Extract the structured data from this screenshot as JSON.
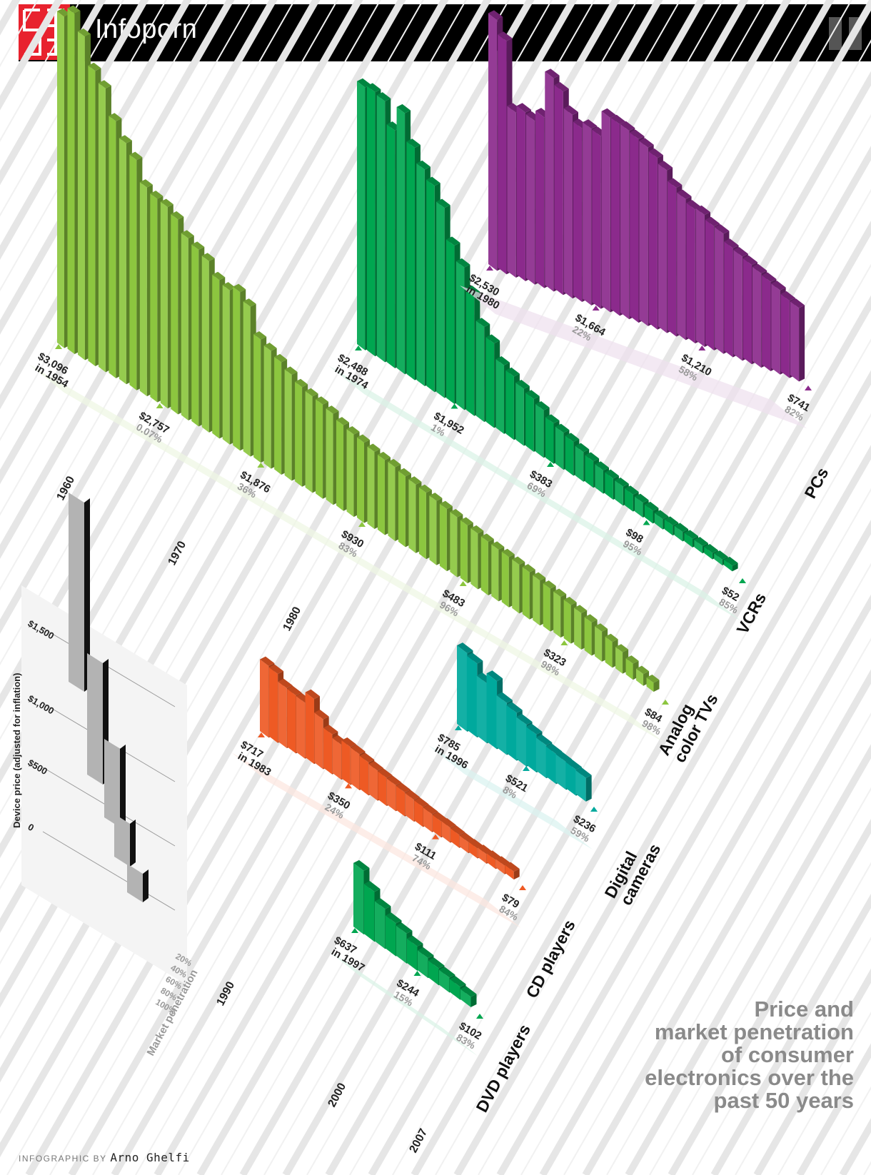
{
  "header": {
    "section_title": "Infoporn"
  },
  "title": {
    "lines": [
      "Price and",
      "market penetration",
      "of consumer",
      "electronics over the",
      "past 50 years"
    ]
  },
  "credit": {
    "prefix": "INFOGRAPHIC BY",
    "name": "Arno Ghelfi"
  },
  "legend": {
    "price_axis_label": "Device price (adjusted for inflation)",
    "price_ticks": [
      "$1,500",
      "$1,000",
      "$500",
      "0"
    ],
    "penetration_axis_label": "Market penetration",
    "penetration_ticks": [
      "20%",
      "40%",
      "60%",
      "80%",
      "100%"
    ]
  },
  "decade_labels": [
    "1960",
    "1970",
    "1980",
    "1990",
    "2000",
    "2007"
  ],
  "colors": {
    "tv": "#8cc63f",
    "vcr": "#00a650",
    "pc": "#8b2a8c",
    "cd": "#ee5a24",
    "camera": "#00a99d",
    "dvd": "#00a650"
  },
  "chart_data": [
    {
      "type": "bar",
      "name": "Analog color TVs",
      "color": "#8cc63f",
      "start_year": 1954,
      "values": [
        3096,
        3180,
        3020,
        2757,
        2650,
        2400,
        2250,
        2150,
        1950,
        1900,
        1880,
        1820,
        1700,
        1650,
        1600,
        1480,
        1440,
        1480,
        1400,
        1150,
        1100,
        1050,
        990,
        930,
        900,
        880,
        850,
        800,
        770,
        750,
        720,
        700,
        690,
        660,
        640,
        620,
        600,
        580,
        560,
        540,
        520,
        500,
        483,
        470,
        455,
        440,
        420,
        400,
        380,
        360,
        340,
        310,
        280,
        240,
        200,
        150,
        110,
        84
      ],
      "annotations": [
        {
          "price": "$3,096",
          "sub": "in 1954",
          "sub_style": "year"
        },
        {
          "price": "$2,757",
          "sub": "0.07%",
          "sub_style": "pct"
        },
        {
          "price": "$1,876",
          "sub": "36%",
          "sub_style": "pct"
        },
        {
          "price": "$930",
          "sub": "83%",
          "sub_style": "pct"
        },
        {
          "price": "$483",
          "sub": "96%",
          "sub_style": "pct"
        },
        {
          "price": "$323",
          "sub": "98%",
          "sub_style": "pct"
        },
        {
          "price": "$84",
          "sub": "98%",
          "sub_style": "pct"
        }
      ]
    },
    {
      "type": "bar",
      "name": "VCRs",
      "color": "#00a650",
      "start_year": 1974,
      "values": [
        2488,
        2500,
        2470,
        2250,
        2470,
        2200,
        2050,
        1952,
        1800,
        1500,
        1350,
        1150,
        900,
        800,
        650,
        600,
        540,
        500,
        450,
        383,
        350,
        320,
        280,
        250,
        220,
        200,
        180,
        160,
        140,
        120,
        98,
        95,
        90,
        80,
        70,
        60,
        55,
        52
      ],
      "annotations": [
        {
          "price": "$2,488",
          "sub": "in 1974",
          "sub_style": "year"
        },
        {
          "price": "$1,952",
          "sub": "1%",
          "sub_style": "pct"
        },
        {
          "price": "$383",
          "sub": "69%",
          "sub_style": "pct"
        },
        {
          "price": "$98",
          "sub": "95%",
          "sub_style": "pct"
        },
        {
          "price": "$52",
          "sub": "85%",
          "sub_style": "pct"
        }
      ]
    },
    {
      "type": "bar",
      "name": "PCs",
      "color": "#8b2a8c",
      "start_year": 1980,
      "values": [
        2530,
        2350,
        1664,
        1700,
        1650,
        1720,
        2150,
        2050,
        1850,
        1750,
        1780,
        1740,
        1960,
        1930,
        1900,
        1850,
        1800,
        1730,
        1640,
        1500,
        1420,
        1350,
        1330,
        1250,
        1210,
        1100,
        1050,
        1000,
        950,
        900,
        850,
        780,
        741
      ],
      "annotations": [
        {
          "price": "$2,530",
          "sub": "in 1980",
          "sub_style": "year"
        },
        {
          "price": "$1,664",
          "sub": "22%",
          "sub_style": "pct"
        },
        {
          "price": "$1,210",
          "sub": "58%",
          "sub_style": "pct"
        },
        {
          "price": "$741",
          "sub": "82%",
          "sub_style": "pct"
        }
      ]
    },
    {
      "type": "bar",
      "name": "CD players",
      "color": "#ee5a24",
      "start_year": 1983,
      "values": [
        717,
        690,
        600,
        580,
        560,
        650,
        500,
        400,
        350,
        380,
        360,
        330,
        300,
        280,
        260,
        240,
        220,
        200,
        180,
        160,
        150,
        130,
        111,
        100,
        95,
        90,
        85,
        79
      ],
      "annotations": [
        {
          "price": "$717",
          "sub": "in 1983",
          "sub_style": "year"
        },
        {
          "price": "$350",
          "sub": "24%",
          "sub_style": "pct"
        },
        {
          "price": "$111",
          "sub": "74%",
          "sub_style": "pct"
        },
        {
          "price": "$79",
          "sub": "84%",
          "sub_style": "pct"
        }
      ]
    },
    {
      "type": "bar",
      "name": "Digital cameras",
      "color": "#00a99d",
      "start_year": 1996,
      "values": [
        785,
        740,
        600,
        680,
        521,
        480,
        420,
        380,
        330,
        300,
        280,
        260,
        236
      ],
      "annotations": [
        {
          "price": "$785",
          "sub": "in 1996",
          "sub_style": "year"
        },
        {
          "price": "$521",
          "sub": "8%",
          "sub_style": "pct"
        },
        {
          "price": "$236",
          "sub": "59%",
          "sub_style": "pct"
        }
      ]
    },
    {
      "type": "bar",
      "name": "DVD players",
      "color": "#00a650",
      "start_year": 1997,
      "values": [
        637,
        500,
        400,
        330,
        300,
        244,
        200,
        170,
        150,
        130,
        102
      ],
      "annotations": [
        {
          "price": "$637",
          "sub": "in 1997",
          "sub_style": "year"
        },
        {
          "price": "$244",
          "sub": "15%",
          "sub_style": "pct"
        },
        {
          "price": "$102",
          "sub": "83%",
          "sub_style": "pct"
        }
      ]
    }
  ]
}
